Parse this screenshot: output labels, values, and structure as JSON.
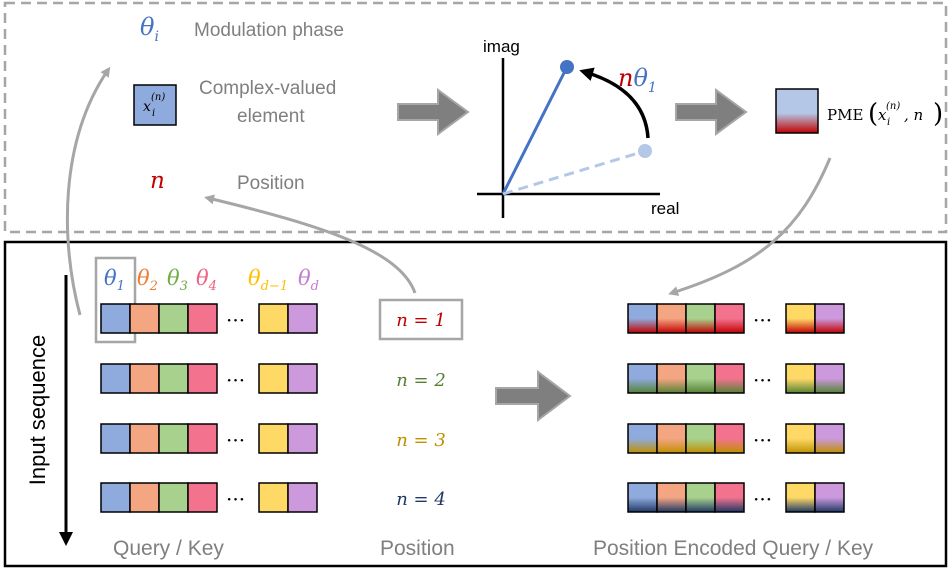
{
  "legend": {
    "theta_symbol": "θ",
    "theta_sub": "i",
    "theta_label": "Modulation phase",
    "element_label_line1": "Complex-valued",
    "element_label_line2": "element",
    "element_symbol": "x",
    "element_sub": "i",
    "element_sup": "(n)",
    "n_symbol": "n",
    "n_label": "Position"
  },
  "rotation": {
    "imag_label": "imag",
    "real_label": "real",
    "angle_n": "n",
    "angle_theta": "θ",
    "angle_sub": "1"
  },
  "pme": {
    "func": "PME",
    "arg_symbol": "x",
    "arg_sub": "i",
    "arg_sup": "(n)",
    "arg_rest": ", n"
  },
  "phases": {
    "items": [
      {
        "sym": "θ",
        "sub": "1",
        "color": "#4472c4"
      },
      {
        "sym": "θ",
        "sub": "2",
        "color": "#ed7d31"
      },
      {
        "sym": "θ",
        "sub": "3",
        "color": "#70ad47"
      },
      {
        "sym": "θ",
        "sub": "4",
        "color": "#f06080"
      },
      {
        "sym": "θ",
        "sub": "d−1",
        "color": "#ffc000"
      },
      {
        "sym": "θ",
        "sub": "d",
        "color": "#c080d0"
      }
    ]
  },
  "colors": {
    "blue": "#8faadc",
    "orange": "#f4a582",
    "green": "#a9d18e",
    "pink": "#f3738f",
    "yellow": "#ffd966",
    "purple": "#cc99dd",
    "red_pos": "#c00000",
    "arrow_gray": "#7f7f7f",
    "vector_blue": "#4472c4",
    "vector_light": "#b4c7e7"
  },
  "positions": [
    {
      "label": "n = 1",
      "color": "#c00000"
    },
    {
      "label": "n = 2",
      "color": "#548235"
    },
    {
      "label": "n = 3",
      "color": "#bf9000"
    },
    {
      "label": "n = 4",
      "color": "#1f3864"
    }
  ],
  "ellipsis": "···",
  "bottom": {
    "input_sequence": "Input sequence",
    "query_key": "Query / Key",
    "position": "Position",
    "encoded": "Position Encoded Query / Key"
  }
}
